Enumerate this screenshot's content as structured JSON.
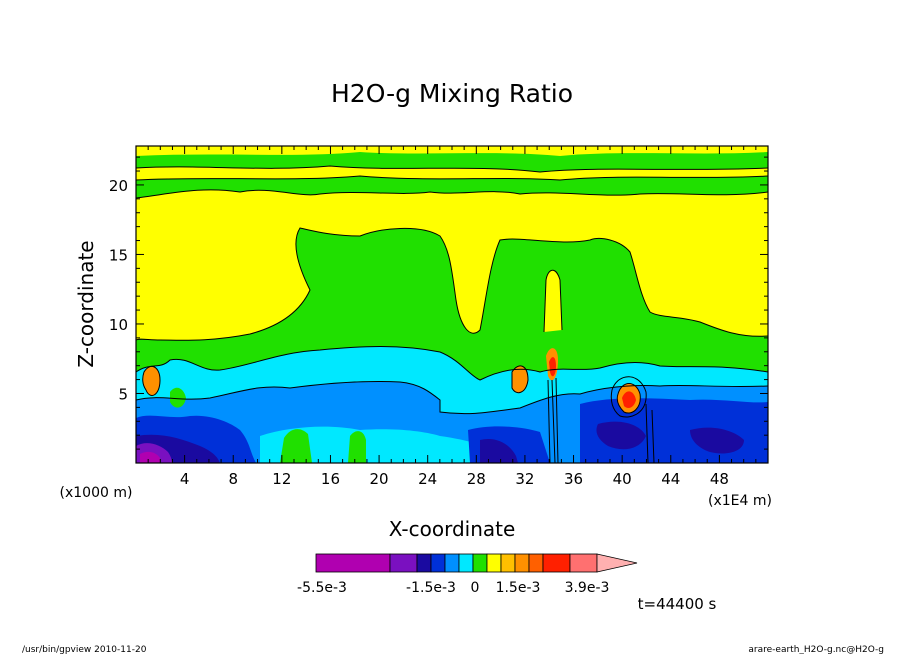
{
  "chart_data": {
    "type": "heatmap",
    "title": "H2O-g Mixing Ratio",
    "xlabel": "X-coordinate",
    "ylabel": "Z-coordinate",
    "x_unit_left": "(x1000 m)",
    "x_unit_right": "(x1E4 m)",
    "xlim": [
      0,
      52
    ],
    "ylim": [
      0,
      22.8
    ],
    "x_ticks": [
      4,
      8,
      12,
      16,
      20,
      24,
      28,
      32,
      36,
      40,
      44,
      48
    ],
    "x_tick_labels": [
      "4",
      "8",
      "12",
      "16",
      "20",
      "24",
      "28",
      "32",
      "36",
      "40",
      "44",
      "48"
    ],
    "y_ticks": [
      5,
      10,
      15,
      20
    ],
    "y_tick_labels": [
      "5",
      "10",
      "15",
      "20"
    ],
    "grid": false,
    "colorbar": {
      "colors": [
        "#b000b0",
        "#7a10c0",
        "#1a0aa0",
        "#0030d8",
        "#0090ff",
        "#00e8ff",
        "#20e000",
        "#ffff00",
        "#ffc000",
        "#ff9000",
        "#ff6000",
        "#ff2000",
        "#ff7070",
        "#ffb0b0"
      ],
      "labels": [
        "-5.5e-3",
        "-1.5e-3",
        "0",
        "1.5e-3",
        "3.9e-3"
      ]
    },
    "time_label": "t=44400 s",
    "colors": {
      "yellow": "#ffff00",
      "green": "#20e000",
      "cyan": "#00e8ff",
      "light_blue": "#0090ff",
      "blue": "#0030d8",
      "dark_blue": "#1a0aa0",
      "purple": "#7a10c0",
      "magenta": "#b000b0",
      "orange": "#ff9000",
      "red": "#ff2000"
    }
  },
  "footer": {
    "left": "/usr/bin/gpview  2010-11-20",
    "right": "arare-earth_H2O-g.nc@H2O-g"
  }
}
